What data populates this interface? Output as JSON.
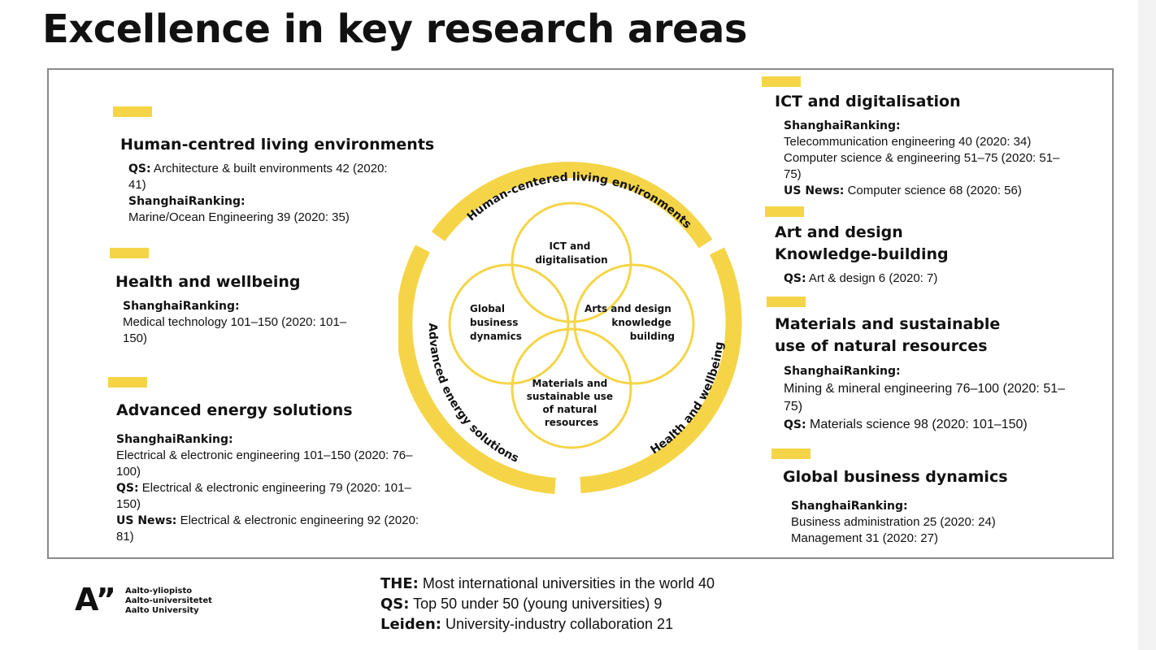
{
  "page": {
    "title": "Excellence in key research areas"
  },
  "left": [
    {
      "title": [
        "Human-centred living environments"
      ],
      "lines": [
        {
          "label": "QS:",
          "text": " Architecture & built environments 42 (2020:"
        },
        {
          "label": "",
          "text": "41)"
        },
        {
          "label": "ShanghaiRanking:",
          "text": ""
        },
        {
          "label": "",
          "text": "Marine/Ocean Engineering 39 (2020: 35)"
        }
      ]
    },
    {
      "title": [
        "Health and wellbeing"
      ],
      "lines": [
        {
          "label": "ShanghaiRanking:",
          "text": ""
        },
        {
          "label": "",
          "text": "Medical technology 101–150 (2020: 101–"
        },
        {
          "label": "",
          "text": "150)"
        }
      ]
    },
    {
      "title": [
        "Advanced energy solutions"
      ],
      "lines": [
        {
          "label": "ShanghaiRanking:",
          "text": ""
        },
        {
          "label": "",
          "text": "Electrical & electronic engineering 101–150 (2020: 76–"
        },
        {
          "label": "",
          "text": "100)"
        },
        {
          "label": "QS:",
          "text": " Electrical & electronic engineering 79 (2020: 101–"
        },
        {
          "label": "",
          "text": "150)"
        },
        {
          "label": "US News:",
          "text": " Electrical & electronic engineering 92 (2020:"
        },
        {
          "label": "",
          "text": "81)"
        }
      ]
    }
  ],
  "right": [
    {
      "title": [
        "ICT and digitalisation"
      ],
      "lines": [
        {
          "label": "ShanghaiRanking:",
          "text": ""
        },
        {
          "label": "",
          "text": "Telecommunication engineering 40 (2020: 34)"
        },
        {
          "label": "",
          "text": "Computer science & engineering 51–75 (2020: 51–"
        },
        {
          "label": "",
          "text": "75)"
        },
        {
          "label": "US News:",
          "text": " Computer science 68 (2020: 56)"
        }
      ]
    },
    {
      "title": [
        "Art and design",
        "Knowledge-building"
      ],
      "lines": [
        {
          "label": "QS:",
          "text": " Art & design 6 (2020: 7)"
        }
      ]
    },
    {
      "title": [
        "Materials and sustainable",
        "use of natural resources"
      ],
      "lines": [
        {
          "label": "ShanghaiRanking:",
          "text": ""
        },
        {
          "label": "",
          "text": "Mining & mineral engineering 76–100 (2020: 51–"
        },
        {
          "label": "",
          "text": "75)"
        },
        {
          "label": "QS:",
          "text": " Materials science 98 (2020: 101–150)"
        }
      ]
    },
    {
      "title": [
        "Global business dynamics"
      ],
      "lines": [
        {
          "label": "ShanghaiRanking:",
          "text": ""
        },
        {
          "label": "",
          "text": "Business administration 25 (2020: 24)"
        },
        {
          "label": "",
          "text": "Management 31 (2020: 27)"
        }
      ]
    }
  ],
  "wheel": {
    "ring_labels": [
      "Human-centered living environments",
      "Advanced energy solutions",
      "Health and wellbeing"
    ],
    "circles": [
      [
        "ICT and",
        "digitalisation"
      ],
      [
        "Arts and design",
        "knowledge",
        "building"
      ],
      [
        "Materials and",
        "sustainable use",
        "of natural",
        "resources"
      ],
      [
        "Global",
        "business",
        "dynamics"
      ]
    ],
    "accent": "#f5d547"
  },
  "footer": [
    {
      "label": "THE:",
      "text": " Most international universities in the world 40"
    },
    {
      "label": "QS:",
      "text": " Top 50 under 50 (young universities) 9"
    },
    {
      "label": "Leiden:",
      "text": " University-industry collaboration 21"
    }
  ],
  "logo": {
    "mark": "A”",
    "names": [
      "Aalto-yliopisto",
      "Aalto-universitetet",
      "Aalto University"
    ]
  }
}
